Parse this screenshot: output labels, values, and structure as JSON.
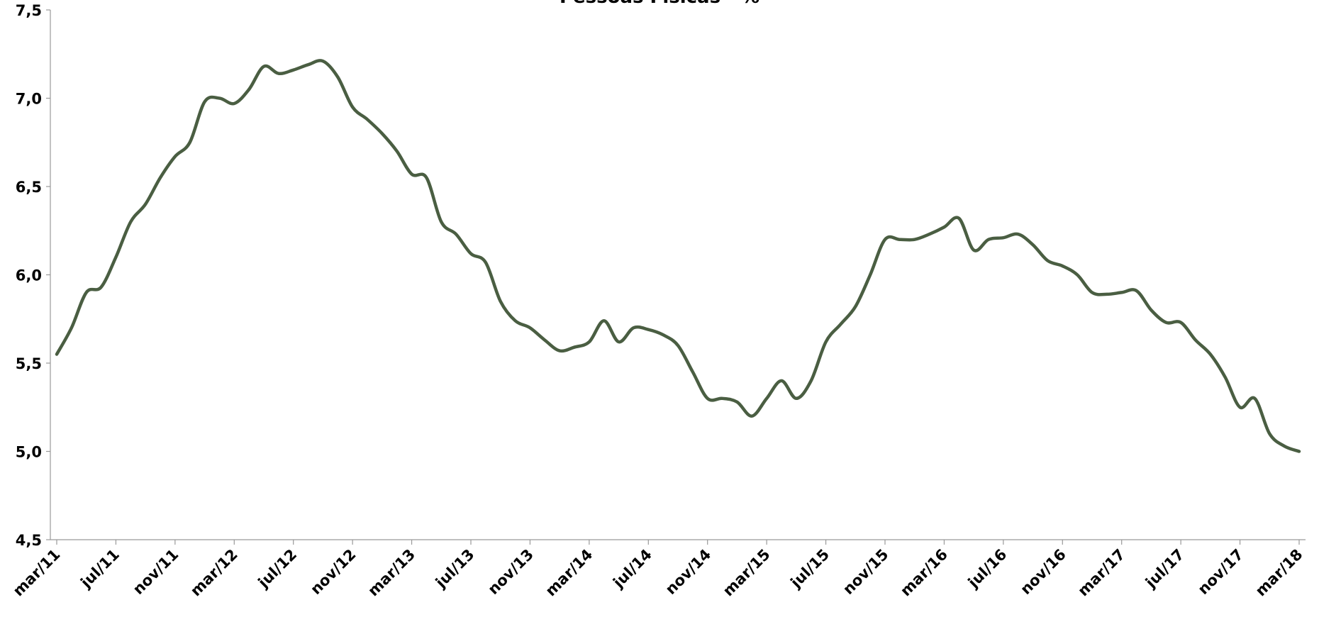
{
  "chart_data": {
    "type": "line",
    "title": "Pessoas Físicas - %",
    "categories": [
      "mar/11",
      null,
      null,
      null,
      "jul/11",
      null,
      null,
      null,
      "nov/11",
      null,
      null,
      null,
      "mar/12",
      null,
      null,
      null,
      "jul/12",
      null,
      null,
      null,
      "nov/12",
      null,
      null,
      null,
      "mar/13",
      null,
      null,
      null,
      "jul/13",
      null,
      null,
      null,
      "nov/13",
      null,
      null,
      null,
      "mar/14",
      null,
      null,
      null,
      "jul/14",
      null,
      null,
      null,
      "nov/14",
      null,
      null,
      null,
      "mar/15",
      null,
      null,
      null,
      "jul/15",
      null,
      null,
      null,
      "nov/15",
      null,
      null,
      null,
      "mar/16",
      null,
      null,
      null,
      "jul/16",
      null,
      null,
      null,
      "nov/16",
      null,
      null,
      null,
      "mar/17",
      null,
      null,
      null,
      "jul/17",
      null,
      null,
      null,
      "nov/17",
      null,
      null,
      null,
      "mar/18"
    ],
    "series": [
      {
        "color": "#4a5e42",
        "values": [
          5.55,
          5.7,
          5.9,
          5.93,
          6.1,
          6.3,
          6.4,
          6.55,
          6.67,
          6.75,
          6.98,
          7.0,
          6.97,
          7.05,
          7.18,
          7.14,
          7.16,
          7.19,
          7.21,
          7.12,
          6.95,
          6.88,
          6.8,
          6.7,
          6.57,
          6.55,
          6.3,
          6.23,
          6.12,
          6.07,
          5.85,
          5.74,
          5.7,
          5.63,
          5.57,
          5.59,
          5.62,
          5.74,
          5.62,
          5.7,
          5.69,
          5.66,
          5.6,
          5.45,
          5.3,
          5.3,
          5.28,
          5.2,
          5.3,
          5.4,
          5.3,
          5.4,
          5.62,
          5.72,
          5.82,
          6.0,
          6.2,
          6.2,
          6.2,
          6.23,
          6.27,
          6.32,
          6.14,
          6.2,
          6.21,
          6.23,
          6.17,
          6.08,
          6.05,
          6.0,
          5.9,
          5.89,
          5.9,
          5.91,
          5.8,
          5.73,
          5.73,
          5.63,
          5.55,
          5.42,
          5.25,
          5.3,
          5.1,
          5.03,
          5.0
        ]
      }
    ],
    "ylim": [
      4.5,
      7.5
    ],
    "yticks": [
      {
        "value": 4.5,
        "label": "4,5"
      },
      {
        "value": 5.0,
        "label": "5,0"
      },
      {
        "value": 5.5,
        "label": "5,5"
      },
      {
        "value": 6.0,
        "label": "6,0"
      },
      {
        "value": 6.5,
        "label": "6,5"
      },
      {
        "value": 7.0,
        "label": "7,0"
      },
      {
        "value": 7.5,
        "label": "7,5"
      }
    ],
    "grid": false
  }
}
